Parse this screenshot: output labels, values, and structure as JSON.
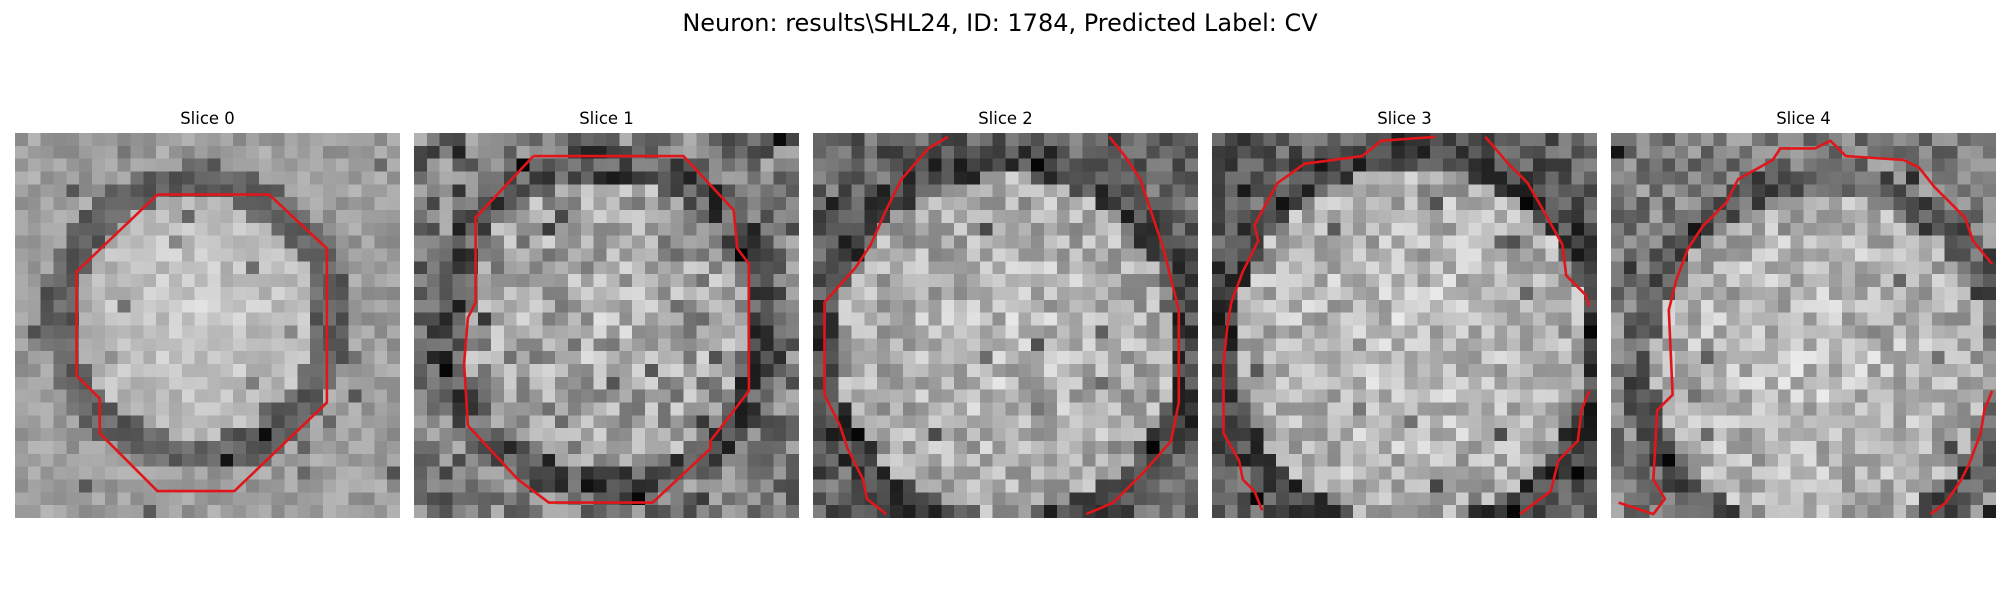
{
  "figure": {
    "suptitle": "Neuron: results\\SHL24, ID: 1784, Predicted Label: CV"
  },
  "panels": [
    {
      "title": "Slice 0"
    },
    {
      "title": "Slice 1"
    },
    {
      "title": "Slice 2"
    },
    {
      "title": "Slice 3"
    },
    {
      "title": "Slice 4"
    }
  ],
  "colors": {
    "contour": "#e0161a",
    "background": "#ffffff"
  },
  "image_style": "grayscale microscopy patch, 30x30 pixel grid, bright rounded cell body with darker surrounding ring",
  "contour_style": "red outline tracing the cell boundary in each slice"
}
